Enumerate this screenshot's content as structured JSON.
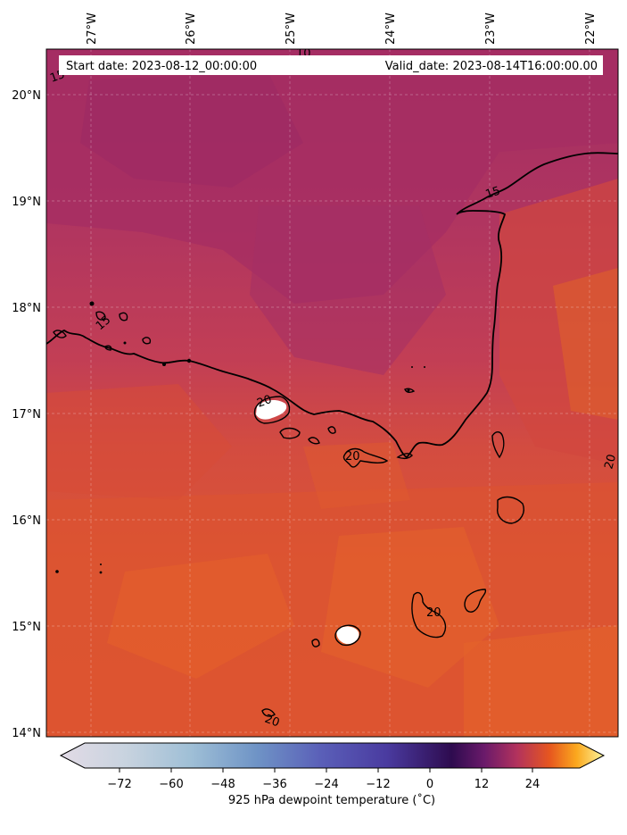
{
  "header": {
    "start_date": "Start date: 2023-08-12_00:00:00",
    "valid_date": "Valid_date: 2023-08-14T16:00:00.00"
  },
  "map": {
    "lon_ticks": [
      "27°W",
      "26°W",
      "25°W",
      "24°W",
      "23°W",
      "22°W"
    ],
    "lat_ticks": [
      "20°N",
      "19°N",
      "18°N",
      "17°N",
      "16°N",
      "15°N",
      "14°N"
    ],
    "contour_labels": [
      "15",
      "15",
      "15",
      "20",
      "20",
      "20",
      "20",
      "20",
      "10"
    ],
    "colors": {
      "north": "#a22d63",
      "mid": "#c4405a",
      "south": "#de5430",
      "patch": "#e8622a",
      "coast": "#000000",
      "land_missing": "#ffffff"
    }
  },
  "colorbar": {
    "label": "925 hPa dewpoint temperature ($^\\circ$C)",
    "label_display": "925 hPa dewpoint temperature (˚C)",
    "ticks": [
      "−72",
      "−60",
      "−48",
      "−36",
      "−24",
      "−12",
      "0",
      "12",
      "24"
    ],
    "colormap": "inferno-style",
    "colors": [
      "#e2dbe6",
      "#9fbfd6",
      "#6a8cc4",
      "#5a5fb8",
      "#4a3ba0",
      "#2e0b4f",
      "#7a1f6a",
      "#c4405a",
      "#f07a1a",
      "#fbb12a",
      "#fcf49c"
    ]
  }
}
